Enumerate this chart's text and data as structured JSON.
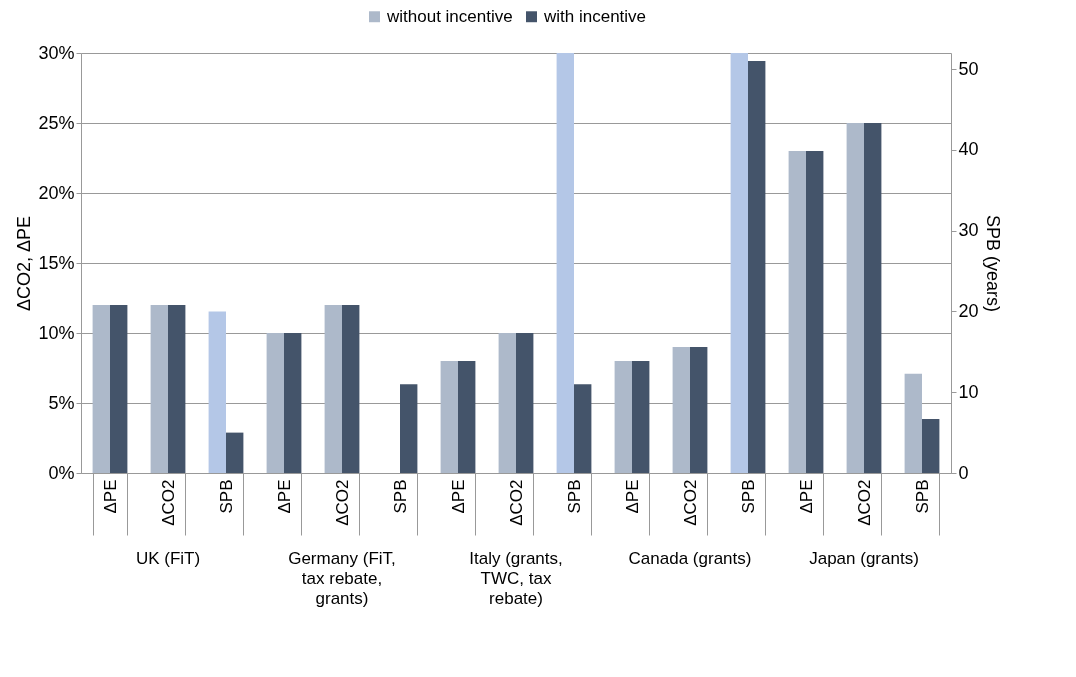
{
  "chart_data": {
    "type": "bar",
    "categories": [
      "ΔPE",
      "ΔCO2",
      "SPB",
      "ΔPE",
      "ΔCO2",
      "SPB",
      "ΔPE",
      "ΔCO2",
      "SPB",
      "ΔPE",
      "ΔCO2",
      "SPB",
      "ΔPE",
      "ΔCO2",
      "SPB"
    ],
    "annotations": [
      "UK (FiT)",
      "Germany (FiT, tax rebate, grants)",
      "Italy (grants, TWC, tax rebate)",
      "Canada (grants)",
      "Japan (grants)"
    ],
    "series": [
      {
        "name": "without incentive",
        "color": "#adb9ca",
        "values": [
          12,
          12,
          null,
          10,
          12,
          null,
          8,
          10,
          null,
          8,
          9,
          null,
          23,
          25,
          null
        ]
      },
      {
        "name": "with incentive",
        "color": "#44546a",
        "values": [
          12,
          12,
          null,
          10,
          12,
          null,
          8,
          10,
          null,
          8,
          9,
          null,
          23,
          25,
          null
        ]
      },
      {
        "axis": "y2",
        "colors": [
          "#b4c7e7",
          "#b4c7e7",
          "#b4c7e7",
          "#b4c7e7",
          "#b4c7e7",
          "#b4c7e7",
          "#b4c7e7",
          "#b4c7e7",
          "#b4c7e7",
          "#b4c7e7",
          "#b4c7e7",
          "#b4c7e7",
          "#adb9ca",
          "#adb9ca",
          "#adb9ca"
        ],
        "values": [
          null,
          null,
          20,
          null,
          null,
          null,
          null,
          null,
          52,
          null,
          null,
          52,
          null,
          null,
          12.3
        ]
      },
      {
        "color": "#44546a",
        "axis": "y2",
        "values": [
          null,
          null,
          5,
          null,
          null,
          11,
          null,
          null,
          11,
          null,
          null,
          51,
          null,
          null,
          6.7
        ]
      }
    ],
    "ylabel": "ΔCO2, ΔPE",
    "y2label": "SPB (years)",
    "ylim": [
      0,
      30
    ],
    "yticks": [
      {
        "value": 0,
        "label": "0%"
      },
      {
        "value": 5,
        "label": "5%"
      },
      {
        "value": 10,
        "label": "10%"
      },
      {
        "value": 15,
        "label": "15%"
      },
      {
        "value": 20,
        "label": "20%"
      },
      {
        "value": 25,
        "label": "25%"
      },
      {
        "value": 30,
        "label": "30%"
      }
    ],
    "y2lim": [
      0,
      52
    ],
    "y2ticks": [
      0,
      10,
      20,
      30,
      40,
      50
    ],
    "grid": "y",
    "legend": "top"
  }
}
